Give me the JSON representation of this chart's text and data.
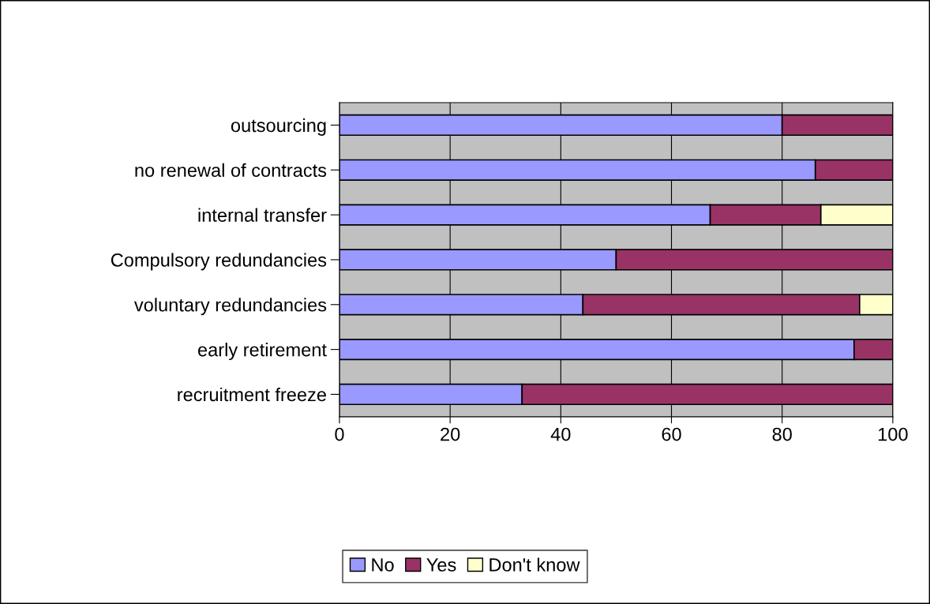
{
  "chart_data": {
    "type": "bar",
    "orientation": "horizontal",
    "stacked": true,
    "categories": [
      "outsourcing",
      "no renewal of contracts",
      "internal transfer",
      "Compulsory redundancies",
      "voluntary redundancies",
      "early retirement",
      "recruitment freeze"
    ],
    "series": [
      {
        "name": "No",
        "color": "#9999ff",
        "values": [
          80,
          86,
          67,
          50,
          44,
          93,
          33
        ]
      },
      {
        "name": "Yes",
        "color": "#993366",
        "values": [
          20,
          14,
          20,
          50,
          50,
          7,
          67
        ]
      },
      {
        "name": "Don't know",
        "color": "#ffffcc",
        "values": [
          0,
          0,
          13,
          0,
          6,
          0,
          0
        ]
      }
    ],
    "xlim": [
      0,
      100
    ],
    "xticks": [
      0,
      20,
      40,
      60,
      80,
      100
    ],
    "grid": "x",
    "legend": "bottom"
  }
}
